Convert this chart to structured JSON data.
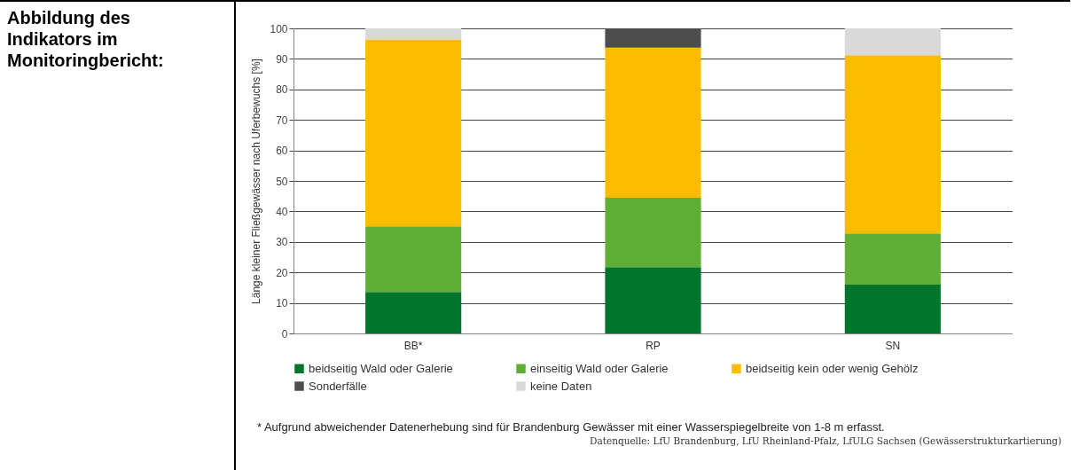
{
  "chart_data": {
    "type": "bar",
    "stacked": true,
    "ylabel": "Länge kleiner Fließgewässer nach Uferbewuchs [%]",
    "categories": [
      "BB*",
      "RP",
      "SN"
    ],
    "series": [
      {
        "name": "beidseitig Wald oder Galerie",
        "color": "#00752b",
        "values": [
          13.6,
          21.7,
          16.0
        ]
      },
      {
        "name": "einseitig Wald oder Galerie",
        "color": "#5fae36",
        "values": [
          21.5,
          22.8,
          16.8
        ]
      },
      {
        "name": "beidseitig kein oder wenig Gehölz",
        "color": "#fbbc00",
        "values": [
          61.3,
          49.2,
          58.4
        ]
      },
      {
        "name": "Sonderfälle",
        "color": "#4d4d4d",
        "values": [
          0,
          6.3,
          0
        ]
      },
      {
        "name": "keine Daten",
        "color": "#d9d9d9",
        "values": [
          3.6,
          0,
          8.8
        ]
      }
    ],
    "ylim": [
      0,
      100
    ],
    "yticks": [
      0,
      10,
      20,
      30,
      40,
      50,
      60,
      70,
      80,
      90,
      100
    ],
    "grid": "y",
    "legend": "bottom",
    "annotations": [
      "Abbildung des Indikators im Monitoringbericht:",
      "* Aufgrund abweichender Datenerhebung sind für Brandenburg Gewässer mit einer Wasserspiegelbreite von 1-8 m erfasst.",
      "Datenquelle: LfU Brandenburg, LfU Rheinland-Pfalz, LfULG Sachsen (Gewässerstrukturkartierung)"
    ]
  }
}
